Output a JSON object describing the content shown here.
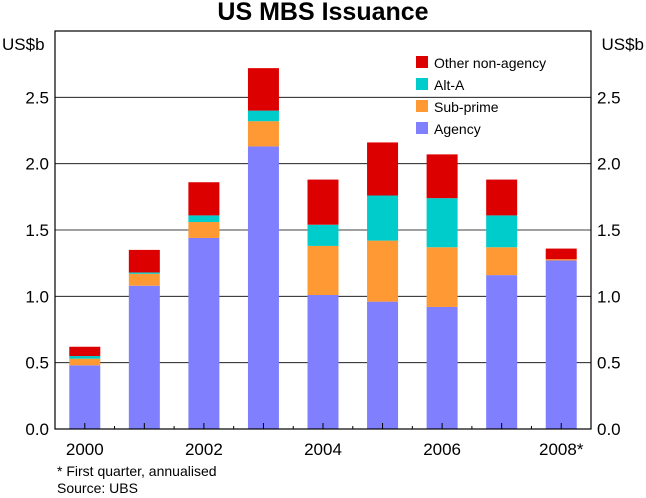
{
  "chart_data": {
    "type": "bar",
    "stacked": true,
    "title": "US MBS Issuance",
    "ylabel_left": "US$b",
    "ylabel_right": "US$b",
    "ylim": [
      0,
      3.0
    ],
    "y_ticks": [
      0.0,
      0.5,
      1.0,
      1.5,
      2.0,
      2.5
    ],
    "y_tick_labels": [
      "0.0",
      "0.5",
      "1.0",
      "1.5",
      "2.0",
      "2.5"
    ],
    "categories": [
      "2000",
      "2001",
      "2002",
      "2003",
      "2004",
      "2005",
      "2006",
      "2007",
      "2008*"
    ],
    "x_tick_labels": [
      "2000",
      "",
      "2002",
      "",
      "2004",
      "",
      "2006",
      "",
      "2008*"
    ],
    "series": [
      {
        "name": "Agency",
        "color": "#8080ff",
        "values": [
          0.48,
          1.08,
          1.44,
          2.13,
          1.01,
          0.96,
          0.92,
          1.16,
          1.27
        ]
      },
      {
        "name": "Sub-prime",
        "color": "#ff9933",
        "values": [
          0.05,
          0.09,
          0.12,
          0.19,
          0.37,
          0.46,
          0.45,
          0.21,
          0.01
        ]
      },
      {
        "name": "Alt-A",
        "color": "#00cccc",
        "values": [
          0.02,
          0.01,
          0.05,
          0.08,
          0.16,
          0.34,
          0.37,
          0.24,
          0.0
        ]
      },
      {
        "name": "Other non-agency",
        "color": "#dd0000",
        "values": [
          0.07,
          0.17,
          0.25,
          0.32,
          0.34,
          0.4,
          0.33,
          0.27,
          0.08
        ]
      }
    ],
    "legend_position": "top-right",
    "grid": true
  },
  "notes": {
    "footnote": "*   First quarter, annualised",
    "source": "Source: UBS"
  }
}
